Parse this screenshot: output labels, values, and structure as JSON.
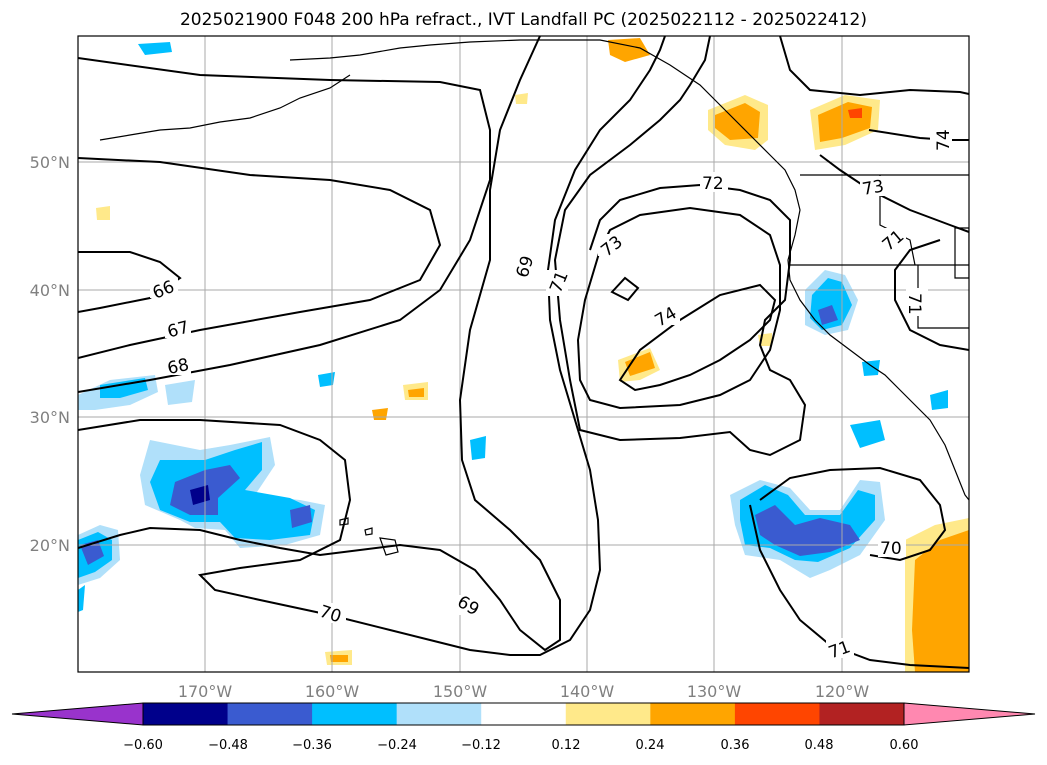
{
  "title": "2025021900 F048 200 hPa refract., IVT Landfall PC (2025022112 - 2025022412)",
  "lon_ticks": [
    "170°W",
    "160°W",
    "150°W",
    "140°W",
    "130°W",
    "120°W"
  ],
  "lat_ticks": [
    "50°N",
    "40°N",
    "30°N",
    "20°N"
  ],
  "contour_labels": [
    "66",
    "67",
    "68",
    "69",
    "69",
    "70",
    "70",
    "71",
    "71",
    "71",
    "71",
    "72",
    "73",
    "73",
    "74",
    "74"
  ],
  "colorbar": {
    "ticks": [
      "−0.60",
      "−0.48",
      "−0.36",
      "−0.24",
      "−0.12",
      "0.12",
      "0.24",
      "0.36",
      "0.48",
      "0.60"
    ],
    "colors": [
      "#9933cc",
      "#00008b",
      "#3a5bd0",
      "#00bfff",
      "#b0e0fa",
      "#ffffff",
      "#ffe98a",
      "#ffa500",
      "#ff4500",
      "#b22222",
      "#ff88b0"
    ]
  }
}
